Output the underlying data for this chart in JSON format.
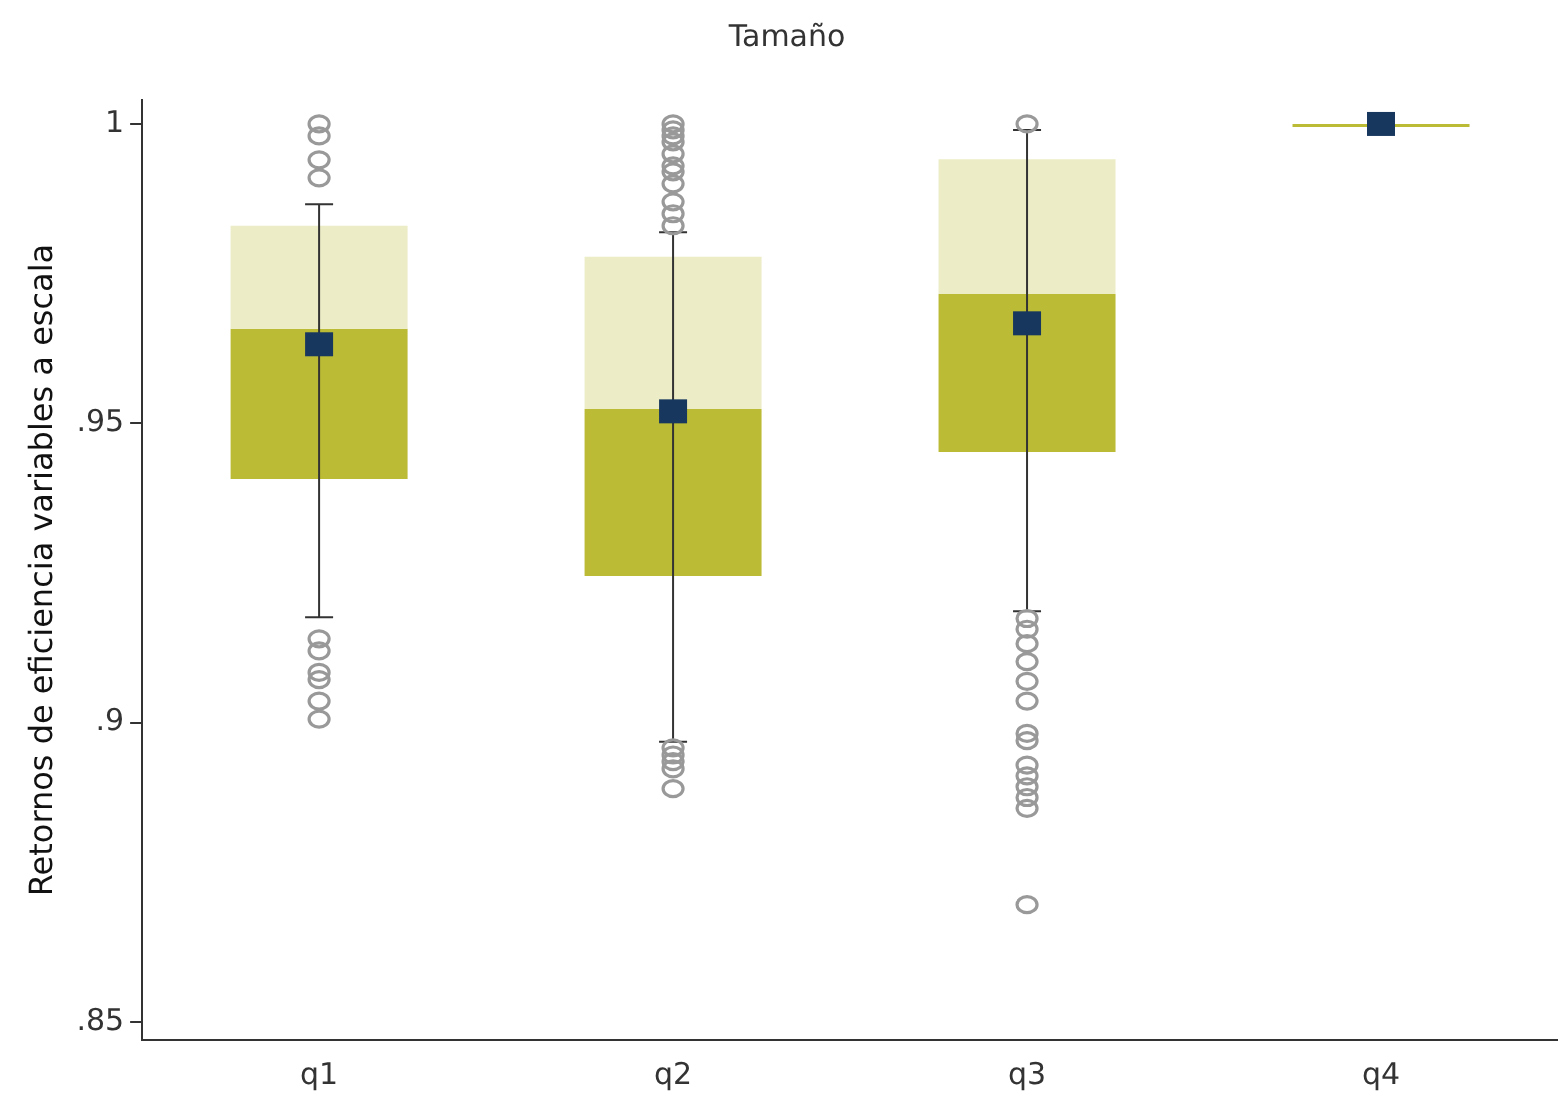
{
  "chart_data": {
    "type": "box",
    "title": "Tamaño",
    "ylabel": "Retornos de eficiencia variables a escala",
    "categories": [
      "q1",
      "q2",
      "q3",
      "q4"
    ],
    "boxes": [
      {
        "low": 0.9176,
        "q1": 0.9407,
        "median": 0.9658,
        "q3": 0.983,
        "high": 0.9866,
        "mean": 0.9632,
        "outliers": [
          1.0,
          0.998,
          0.994,
          0.991,
          0.914,
          0.912,
          0.9084,
          0.9072,
          0.9036,
          0.9006
        ]
      },
      {
        "low": 0.8968,
        "q1": 0.9245,
        "median": 0.9524,
        "q3": 0.9778,
        "high": 0.9819,
        "mean": 0.952,
        "outliers": [
          1.0,
          0.999,
          0.998,
          0.997,
          0.995,
          0.993,
          0.992,
          0.99,
          0.987,
          0.985,
          0.983,
          0.8958,
          0.8946,
          0.8935,
          0.8923,
          0.889
        ]
      },
      {
        "low": 0.9186,
        "q1": 0.9452,
        "median": 0.9716,
        "q3": 0.9941,
        "high": 0.999,
        "mean": 0.9667,
        "outliers": [
          1.0,
          0.9174,
          0.9156,
          0.9132,
          0.9102,
          0.9069,
          0.9036,
          0.8982,
          0.897,
          0.8929,
          0.8911,
          0.8893,
          0.8875,
          0.8857,
          0.8696
        ]
      },
      {
        "low": 1.0,
        "q1": 1.0,
        "median": 1.0,
        "q3": 1.0,
        "high": 1.0,
        "mean": 1.0
      }
    ],
    "colors": [
      "#bcbb35",
      "#bcbb35",
      "#bcbb35",
      "#bcbb35"
    ],
    "color": "#17375e",
    "ylim": [
      0.847,
      1.004
    ],
    "yticks": [
      {
        "value": 0.85,
        "label": ".85"
      },
      {
        "value": 0.9,
        "label": ".9"
      },
      {
        "value": 0.95,
        "label": ".95"
      },
      {
        "value": 1,
        "label": "1"
      }
    ],
    "grid": false,
    "legend": false
  }
}
